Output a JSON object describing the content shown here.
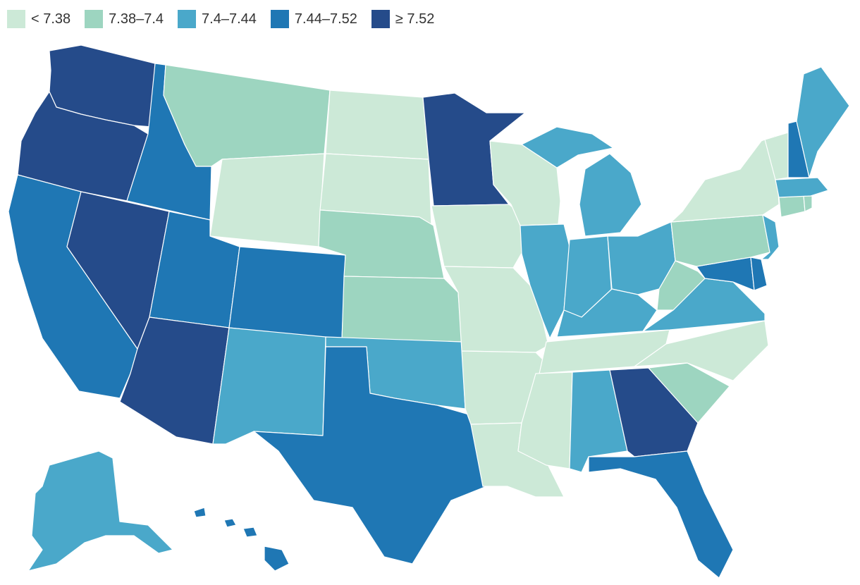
{
  "legend": [
    {
      "label": "< 7.38",
      "bin": 0
    },
    {
      "label": "7.38–7.4",
      "bin": 1
    },
    {
      "label": "7.4–7.44",
      "bin": 2
    },
    {
      "label": "7.44–7.52",
      "bin": 3
    },
    {
      "label": "≥ 7.52",
      "bin": 4
    }
  ],
  "colors": [
    "#cce9d7",
    "#9dd5c0",
    "#4aa8ca",
    "#1f77b4",
    "#254b8a"
  ],
  "states": [
    {
      "name": "Washington",
      "bin": 4
    },
    {
      "name": "Oregon",
      "bin": 4
    },
    {
      "name": "California",
      "bin": 3
    },
    {
      "name": "Nevada",
      "bin": 4
    },
    {
      "name": "Idaho",
      "bin": 3
    },
    {
      "name": "Montana",
      "bin": 1
    },
    {
      "name": "Wyoming",
      "bin": 0
    },
    {
      "name": "Utah",
      "bin": 3
    },
    {
      "name": "Arizona",
      "bin": 4
    },
    {
      "name": "Colorado",
      "bin": 3
    },
    {
      "name": "New Mexico",
      "bin": 2
    },
    {
      "name": "North Dakota",
      "bin": 0
    },
    {
      "name": "South Dakota",
      "bin": 0
    },
    {
      "name": "Nebraska",
      "bin": 1
    },
    {
      "name": "Kansas",
      "bin": 1
    },
    {
      "name": "Oklahoma",
      "bin": 2
    },
    {
      "name": "Texas",
      "bin": 3
    },
    {
      "name": "Minnesota",
      "bin": 4
    },
    {
      "name": "Iowa",
      "bin": 0
    },
    {
      "name": "Missouri",
      "bin": 0
    },
    {
      "name": "Arkansas",
      "bin": 0
    },
    {
      "name": "Louisiana",
      "bin": 0
    },
    {
      "name": "Wisconsin",
      "bin": 0
    },
    {
      "name": "Illinois",
      "bin": 2
    },
    {
      "name": "Michigan",
      "bin": 2
    },
    {
      "name": "Indiana",
      "bin": 2
    },
    {
      "name": "Ohio",
      "bin": 2
    },
    {
      "name": "Kentucky",
      "bin": 2
    },
    {
      "name": "Tennessee",
      "bin": 0
    },
    {
      "name": "Mississippi",
      "bin": 0
    },
    {
      "name": "Alabama",
      "bin": 2
    },
    {
      "name": "Georgia",
      "bin": 4
    },
    {
      "name": "Florida",
      "bin": 3
    },
    {
      "name": "South Carolina",
      "bin": 1
    },
    {
      "name": "North Carolina",
      "bin": 0
    },
    {
      "name": "Virginia",
      "bin": 2
    },
    {
      "name": "West Virginia",
      "bin": 1
    },
    {
      "name": "Maryland",
      "bin": 3
    },
    {
      "name": "Delaware",
      "bin": 3
    },
    {
      "name": "Pennsylvania",
      "bin": 1
    },
    {
      "name": "New Jersey",
      "bin": 2
    },
    {
      "name": "New York",
      "bin": 0
    },
    {
      "name": "Connecticut",
      "bin": 1
    },
    {
      "name": "Rhode Island",
      "bin": 1
    },
    {
      "name": "Massachusetts",
      "bin": 2
    },
    {
      "name": "Vermont",
      "bin": 0
    },
    {
      "name": "New Hampshire",
      "bin": 3
    },
    {
      "name": "Maine",
      "bin": 2
    },
    {
      "name": "Alaska",
      "bin": 2
    },
    {
      "name": "Hawaii",
      "bin": 3
    }
  ]
}
